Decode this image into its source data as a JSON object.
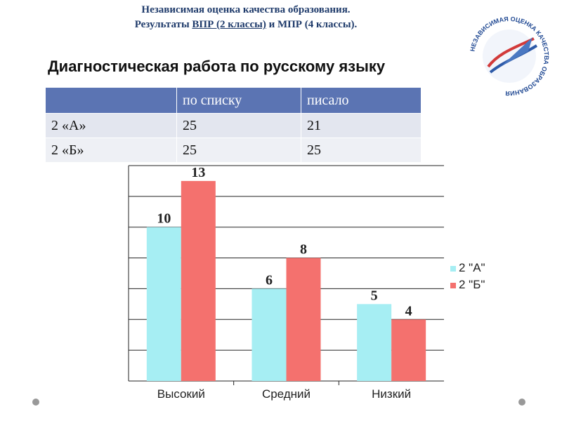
{
  "header": {
    "line1": "Независимая оценка качества образования.",
    "line2_pre": "Результаты ",
    "line2_link": "ВПР (2 классы)",
    "line2_post": " и МПР (4 классы)."
  },
  "logo": {
    "text": "НЕЗАВИСИМАЯ ОЦЕНКА КАЧЕСТВА ОБРАЗОВАНИЯ"
  },
  "subtitle": "Диагностическая работа по русскому языку",
  "table": {
    "headers": [
      "",
      "по списку",
      "писало"
    ],
    "rows": [
      [
        "2 «А»",
        "25",
        "21"
      ],
      [
        "2 «Б»",
        "25",
        "25"
      ]
    ]
  },
  "chart_data": {
    "type": "bar",
    "categories": [
      "Высокий",
      "Средний",
      "Низкий"
    ],
    "series": [
      {
        "name": "2 \"А\"",
        "values": [
          10,
          6,
          5
        ],
        "color": "#a6eef3"
      },
      {
        "name": "2 \"Б\"",
        "values": [
          13,
          8,
          4
        ],
        "color": "#f4716e"
      }
    ],
    "ylim": [
      0,
      14
    ],
    "grid": true,
    "legend": "right",
    "title": "",
    "xlabel": "",
    "ylabel": ""
  }
}
